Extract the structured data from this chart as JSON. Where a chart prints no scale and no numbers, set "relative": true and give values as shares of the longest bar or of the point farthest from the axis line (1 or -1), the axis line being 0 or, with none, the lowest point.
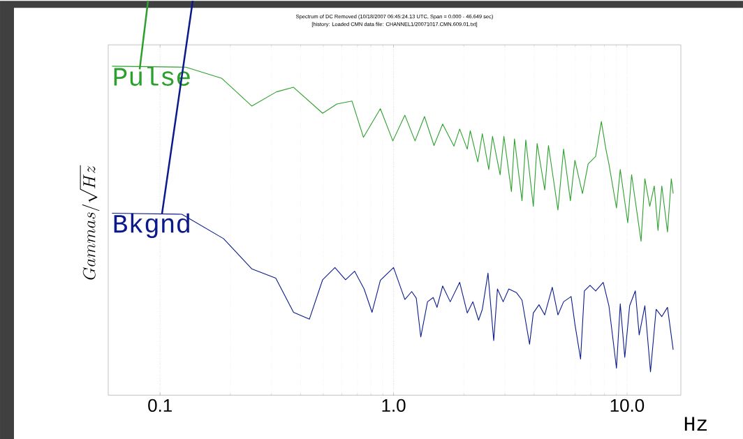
{
  "chart_data": {
    "type": "line",
    "relative": true,
    "log": "x",
    "grid": "x",
    "title": "Spectrum of DC Removed (10/18/2007 06:45:24.13 UTC, Span =  0.000 - 46.649 sec)",
    "subtitle": "[history: Loaded CMN data file: CHANNEL1/20071017.CMN.609.01.txt]",
    "xlabel": "Hz",
    "ylabel": "Gammas / \\sqrt{Hz}",
    "xlim": [
      0.06,
      17
    ],
    "xticks": [
      {
        "value": 0.1,
        "label": "0.1"
      },
      {
        "value": 1,
        "label": "1.0"
      },
      {
        "value": 10,
        "label": "10.0"
      }
    ],
    "series": [
      {
        "name": "Pulse",
        "color": "#2ca02c",
        "x": [
          0.0623,
          0.129,
          0.184,
          0.247,
          0.315,
          0.373,
          0.497,
          0.572,
          0.664,
          0.743,
          0.878,
          0.993,
          1.118,
          1.236,
          1.357,
          1.49,
          1.623,
          1.815,
          1.92,
          2.068,
          2.131,
          2.296,
          2.4,
          2.557,
          2.654,
          2.86,
          2.969,
          3.198,
          3.295,
          3.55,
          3.684,
          3.969,
          4.12,
          4.44,
          4.607,
          5.058,
          5.349,
          5.719,
          5.98,
          6.443,
          6.813,
          7.339,
          7.762,
          8.116,
          8.362,
          9.009,
          9.352,
          10.07,
          10.46,
          11.48,
          11.92,
          12.51,
          13.08,
          13.57,
          14.09,
          14.9,
          15.47,
          15.76
        ],
        "values": [
          1.0,
          0.997,
          0.963,
          0.879,
          0.922,
          0.936,
          0.857,
          0.885,
          0.894,
          0.784,
          0.871,
          0.773,
          0.851,
          0.773,
          0.847,
          0.759,
          0.824,
          0.757,
          0.809,
          0.748,
          0.804,
          0.709,
          0.795,
          0.686,
          0.787,
          0.67,
          0.787,
          0.619,
          0.779,
          0.591,
          0.776,
          0.574,
          0.765,
          0.624,
          0.759,
          0.563,
          0.748,
          0.591,
          0.714,
          0.613,
          0.703,
          0.726,
          0.832,
          0.748,
          0.703,
          0.569,
          0.686,
          0.524,
          0.67,
          0.468,
          0.658,
          0.574,
          0.636,
          0.501,
          0.636,
          0.496,
          0.658,
          0.613
        ]
      },
      {
        "name": "Bkgnd",
        "color": "#0a1a8c",
        "x": [
          0.0623,
          0.124,
          0.187,
          0.247,
          0.313,
          0.373,
          0.436,
          0.497,
          0.561,
          0.623,
          0.681,
          0.748,
          0.809,
          0.878,
          1.0,
          1.118,
          1.196,
          1.251,
          1.308,
          1.398,
          1.479,
          1.535,
          1.623,
          1.749,
          1.92,
          2.068,
          2.187,
          2.313,
          2.4,
          2.538,
          2.685,
          2.786,
          2.947,
          3.116,
          3.357,
          3.55,
          3.824,
          3.969,
          4.198,
          4.44,
          4.783,
          5.058,
          5.349,
          5.761,
          5.98,
          6.324,
          6.565,
          6.941,
          7.339,
          7.907,
          8.362,
          9.009,
          9.352,
          9.779,
          10.26,
          10.85,
          11.27,
          11.92,
          12.6,
          13.32,
          14.09,
          14.9,
          15.76
        ],
        "values": [
          0.553,
          0.55,
          0.476,
          0.384,
          0.356,
          0.252,
          0.231,
          0.351,
          0.388,
          0.351,
          0.377,
          0.323,
          0.252,
          0.349,
          0.388,
          0.291,
          0.315,
          0.295,
          0.177,
          0.284,
          0.297,
          0.267,
          0.332,
          0.284,
          0.343,
          0.25,
          0.284,
          0.228,
          0.261,
          0.371,
          0.166,
          0.323,
          0.284,
          0.323,
          0.312,
          0.289,
          0.155,
          0.25,
          0.275,
          0.244,
          0.328,
          0.244,
          0.284,
          0.3,
          0.216,
          0.11,
          0.317,
          0.334,
          0.317,
          0.343,
          0.272,
          0.082,
          0.278,
          0.115,
          0.272,
          0.317,
          0.183,
          0.272,
          0.071,
          0.261,
          0.239,
          0.267,
          0.138
        ]
      }
    ]
  }
}
